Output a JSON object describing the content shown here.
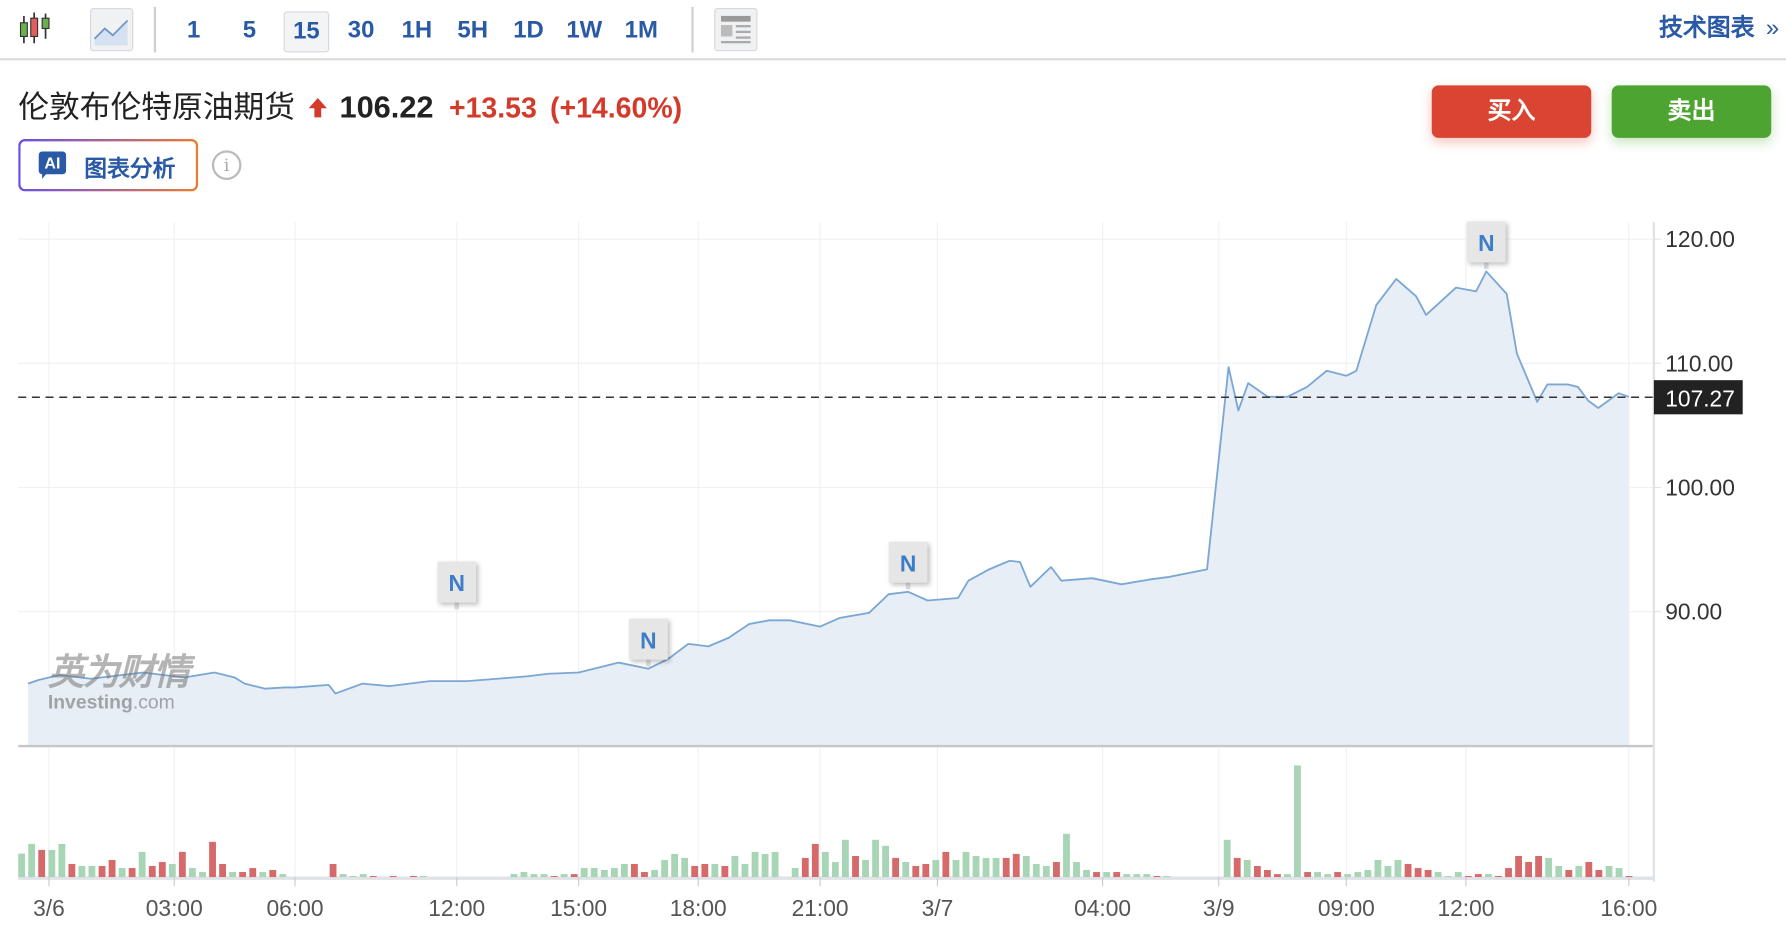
{
  "toolbar": {
    "chart_types": [
      {
        "icon": "candlestick-icon"
      },
      {
        "icon": "area-chart-icon",
        "active": true
      }
    ],
    "timeframes": [
      {
        "label": "1"
      },
      {
        "label": "5"
      },
      {
        "label": "15",
        "active": true
      },
      {
        "label": "30"
      },
      {
        "label": "1H"
      },
      {
        "label": "5H"
      },
      {
        "label": "1D"
      },
      {
        "label": "1W"
      },
      {
        "label": "1M"
      }
    ],
    "layout_icon": "news-layout-icon",
    "tech_chart_link": "技术图表",
    "tech_chart_icon": "double-chevron-right-icon"
  },
  "instrument": {
    "name": "伦敦布伦特原油期货",
    "direction_icon": "arrow-up-icon",
    "price": "106.22",
    "change": "+13.53",
    "change_pct": "(+14.60%)"
  },
  "actions": {
    "buy": "买入",
    "sell": "卖出"
  },
  "ai": {
    "badge": "AI",
    "label": "图表分析",
    "info_icon": "info-icon"
  },
  "watermark": {
    "cn": "英为财情",
    "en": "Investing",
    "suffix": ".com"
  },
  "colors": {
    "accent": "#2a5aa5",
    "up": "#d33a2a",
    "buy": "#d94532",
    "sell": "#4da430",
    "line": "#7ba7d4",
    "area": "#e8eef5",
    "vol_up": "#a8d5b5",
    "vol_down": "#d66a6a"
  },
  "chart_data": {
    "type": "area",
    "ylim": [
      79.3,
      121.4
    ],
    "y_ticks": [
      "120.00",
      "110.00",
      "100.00",
      "90.00"
    ],
    "y_tick_values": [
      120,
      110,
      100,
      90
    ],
    "last_price_label": "107.27",
    "last_price": 107.27,
    "x_ticks": [
      "3/6",
      "03:00",
      "06:00",
      "12:00",
      "15:00",
      "18:00",
      "21:00",
      "3/7",
      "04:00",
      "3/9",
      "09:00",
      "12:00",
      "16:00"
    ],
    "grid": true,
    "price": [
      [
        "3/5 23:30",
        84.2
      ],
      [
        "3/5 23:45",
        84.5
      ],
      [
        "3/6 00:15",
        84.9
      ],
      [
        "3/6 01:00",
        84.6
      ],
      [
        "3/6 01:45",
        84.9
      ],
      [
        "3/6 02:15",
        85.1
      ],
      [
        "3/6 03:15",
        84.7
      ],
      [
        "3/6 04:00",
        85.1
      ],
      [
        "3/6 04:30",
        84.7
      ],
      [
        "3/6 04:45",
        84.2
      ],
      [
        "3/6 05:15",
        83.8
      ],
      [
        "3/6 05:45",
        83.9
      ],
      [
        "3/6 06:00",
        83.9
      ],
      [
        "3/6 07:15",
        84.1
      ],
      [
        "3/6 07:30",
        83.4
      ],
      [
        "3/6 08:30",
        84.2
      ],
      [
        "3/6 09:30",
        84.0
      ],
      [
        "3/6 11:00",
        84.4
      ],
      [
        "3/6 12:15",
        84.4
      ],
      [
        "3/6 13:00",
        84.6
      ],
      [
        "3/6 13:45",
        84.8
      ],
      [
        "3/6 14:15",
        85.0
      ],
      [
        "3/6 15:00",
        85.1
      ],
      [
        "3/6 16:00",
        85.9
      ],
      [
        "3/6 16:45",
        85.4
      ],
      [
        "3/6 17:15",
        86.2
      ],
      [
        "3/6 17:45",
        87.4
      ],
      [
        "3/6 18:15",
        87.2
      ],
      [
        "3/6 18:45",
        87.9
      ],
      [
        "3/6 19:15",
        89.0
      ],
      [
        "3/6 19:45",
        89.3
      ],
      [
        "3/6 20:15",
        89.3
      ],
      [
        "3/6 21:00",
        88.8
      ],
      [
        "3/6 21:30",
        89.5
      ],
      [
        "3/6 22:15",
        89.9
      ],
      [
        "3/6 22:45",
        91.4
      ],
      [
        "3/6 23:15",
        91.6
      ],
      [
        "3/6 23:45",
        90.9
      ],
      [
        "3/7 00:30",
        91.1
      ],
      [
        "3/7 00:45",
        92.5
      ],
      [
        "3/7 01:15",
        93.4
      ],
      [
        "3/7 01:45",
        94.1
      ],
      [
        "3/7 02:00",
        94.0
      ],
      [
        "3/7 02:15",
        92.0
      ],
      [
        "3/7 02:45",
        93.6
      ],
      [
        "3/7 03:00",
        92.5
      ],
      [
        "3/7 03:45",
        92.7
      ],
      [
        "3/7 04:30",
        92.2
      ],
      [
        "3/7 05:15",
        92.6
      ],
      [
        "3/7 05:45",
        92.8
      ],
      [
        "3/7 06:15",
        93.1
      ],
      [
        "3/7 06:45",
        93.4
      ],
      [
        "3/9 06:00",
        109.7
      ],
      [
        "3/9 06:15",
        106.2
      ],
      [
        "3/9 06:30",
        108.4
      ],
      [
        "3/9 07:00",
        107.3
      ],
      [
        "3/9 07:30",
        107.3
      ],
      [
        "3/9 08:00",
        108.1
      ],
      [
        "3/9 08:30",
        109.4
      ],
      [
        "3/9 09:00",
        109.0
      ],
      [
        "3/9 09:15",
        109.4
      ],
      [
        "3/9 09:45",
        114.7
      ],
      [
        "3/9 10:15",
        116.8
      ],
      [
        "3/9 10:45",
        115.4
      ],
      [
        "3/9 11:00",
        113.9
      ],
      [
        "3/9 11:45",
        116.1
      ],
      [
        "3/9 12:15",
        115.8
      ],
      [
        "3/9 12:30",
        117.4
      ],
      [
        "3/9 13:00",
        115.6
      ],
      [
        "3/9 13:15",
        110.8
      ],
      [
        "3/9 13:45",
        106.9
      ],
      [
        "3/9 14:00",
        108.3
      ],
      [
        "3/9 14:30",
        108.3
      ],
      [
        "3/9 14:45",
        108.1
      ],
      [
        "3/9 15:00",
        107.0
      ],
      [
        "3/9 15:15",
        106.4
      ],
      [
        "3/9 15:45",
        107.6
      ],
      [
        "3/9 16:00",
        107.3
      ]
    ],
    "news_markers": [
      {
        "label": "N",
        "time": "3/6 12:00"
      },
      {
        "label": "N",
        "time": "3/6 16:45"
      },
      {
        "label": "N",
        "time": "3/6 23:15"
      },
      {
        "label": "N",
        "time": "3/9 12:30"
      }
    ],
    "volume_note_sign": "positive = up bar, negative = down bar (relative units)",
    "volume": [
      70,
      99,
      -81,
      81,
      99,
      -39,
      33,
      33,
      -33,
      -51,
      27,
      -27,
      75,
      -33,
      -45,
      39,
      -75,
      27,
      15,
      -105,
      -39,
      15,
      -15,
      -27,
      15,
      -21,
      9,
      0,
      0,
      0,
      0,
      -39,
      9,
      3,
      9,
      -3,
      0,
      -3,
      0,
      -3,
      3,
      0,
      0,
      0,
      0,
      0,
      0,
      0,
      0,
      9,
      15,
      9,
      9,
      -3,
      9,
      -9,
      27,
      27,
      21,
      27,
      39,
      -39,
      -15,
      21,
      51,
      69,
      57,
      -33,
      -39,
      39,
      -33,
      63,
      39,
      75,
      69,
      75,
      0,
      27,
      -57,
      -99,
      75,
      45,
      111,
      -63,
      51,
      111,
      93,
      -57,
      45,
      -33,
      -39,
      51,
      -75,
      51,
      75,
      63,
      57,
      57,
      -57,
      -69,
      63,
      39,
      33,
      -45,
      129,
      45,
      21,
      -15,
      15,
      -15,
      9,
      9,
      9,
      -3,
      3,
      0,
      0,
      0,
      0,
      0,
      111,
      -57,
      51,
      -33,
      -21,
      -9,
      9,
      333,
      -15,
      15,
      9,
      -15,
      9,
      15,
      21,
      51,
      33,
      51,
      -39,
      -27,
      -21,
      15,
      3,
      15,
      -3,
      -9,
      9,
      -3,
      -27,
      -63,
      -45,
      -63,
      57,
      33,
      -21,
      33,
      -45,
      -21,
      33,
      27,
      -3
    ]
  }
}
